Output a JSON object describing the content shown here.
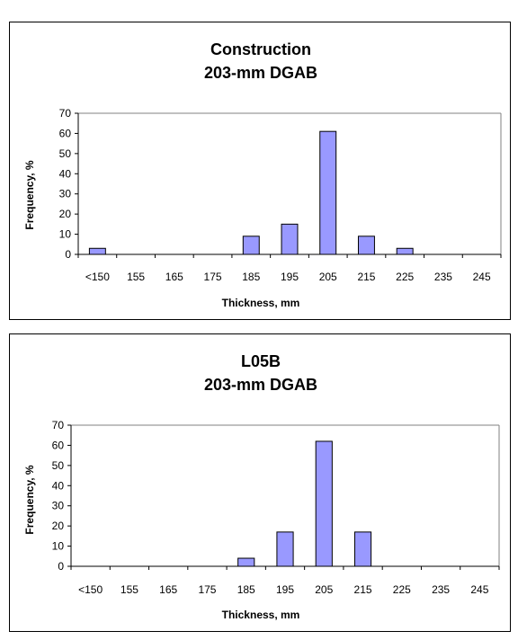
{
  "chart_data": [
    {
      "type": "bar",
      "title": "Construction",
      "subtitle": "203-mm DGAB",
      "xlabel": "Thickness, mm",
      "ylabel": "Frequency, %",
      "ylim": [
        0,
        70
      ],
      "yticks": [
        0,
        10,
        20,
        30,
        40,
        50,
        60,
        70
      ],
      "categories": [
        "<150",
        "155",
        "165",
        "175",
        "185",
        "195",
        "205",
        "215",
        "225",
        "235",
        "245"
      ],
      "values": [
        3,
        0,
        0,
        0,
        9,
        15,
        61,
        9,
        3,
        0,
        0
      ],
      "grid": false,
      "bar_color": "#9999ff"
    },
    {
      "type": "bar",
      "title": "L05B",
      "subtitle": "203-mm DGAB",
      "xlabel": "Thickness, mm",
      "ylabel": "Frequency, %",
      "ylim": [
        0,
        70
      ],
      "yticks": [
        0,
        10,
        20,
        30,
        40,
        50,
        60,
        70
      ],
      "categories": [
        "<150",
        "155",
        "165",
        "175",
        "185",
        "195",
        "205",
        "215",
        "225",
        "235",
        "245"
      ],
      "values": [
        0,
        0,
        0,
        0,
        4,
        17,
        62,
        17,
        0,
        0,
        0
      ],
      "grid": false,
      "bar_color": "#9999ff"
    }
  ]
}
